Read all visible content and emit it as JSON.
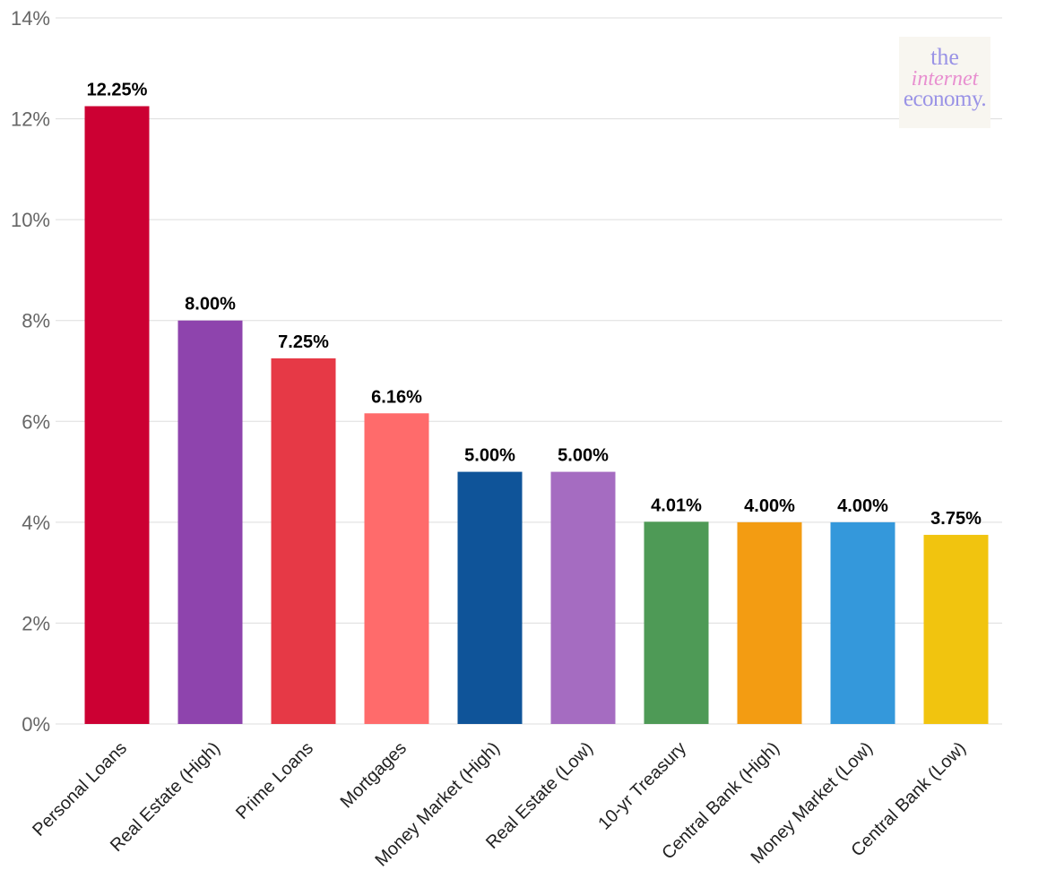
{
  "chart_data": {
    "type": "bar",
    "categories": [
      "Personal Loans",
      "Real Estate (High)",
      "Prime Loans",
      "Mortgages",
      "Money Market (High)",
      "Real Estate (Low)",
      "10-yr Treasury",
      "Central Bank (High)",
      "Money Market (Low)",
      "Central Bank (Low)"
    ],
    "values": [
      12.25,
      8.0,
      7.25,
      6.16,
      5.0,
      5.0,
      4.01,
      4.0,
      4.0,
      3.75
    ],
    "value_labels": [
      "12.25%",
      "8.00%",
      "7.25%",
      "6.16%",
      "5.00%",
      "5.00%",
      "4.01%",
      "4.00%",
      "4.00%",
      "3.75%"
    ],
    "colors": [
      "#cc0033",
      "#8e44ad",
      "#e63946",
      "#ff6b6b",
      "#0f5499",
      "#a56cc1",
      "#4e9a56",
      "#f39c12",
      "#3498db",
      "#f1c40f"
    ],
    "ylim": [
      0,
      14
    ],
    "yticks": [
      0,
      2,
      4,
      6,
      8,
      10,
      12,
      14
    ],
    "ytick_labels": [
      "0%",
      "2%",
      "4%",
      "6%",
      "8%",
      "10%",
      "12%",
      "14%"
    ],
    "grid": true,
    "title": "",
    "xlabel": "",
    "ylabel": ""
  },
  "logo": {
    "line1": "the",
    "line2": "internet",
    "line3": "economy."
  }
}
